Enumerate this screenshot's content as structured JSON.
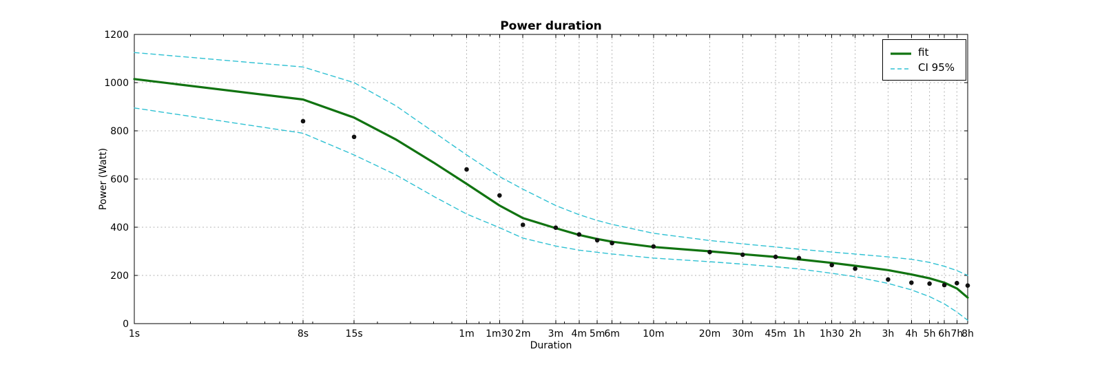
{
  "chart_data": {
    "type": "line",
    "title": "Power duration",
    "xlabel": "Duration",
    "ylabel": "Power (Watt)",
    "x_scale": "log",
    "ylim": [
      0,
      1200
    ],
    "yticks": [
      0,
      200,
      400,
      600,
      800,
      1000,
      1200
    ],
    "grid": true,
    "legend_position": "upper right",
    "colors": {
      "fit": "#117311",
      "ci": "#2fc1d3",
      "points": "#111111",
      "grid": "#b3b3b3",
      "frame": "#000000"
    },
    "x_ticks": [
      {
        "label": "1s",
        "seconds": 1
      },
      {
        "label": "8s",
        "seconds": 8
      },
      {
        "label": "15s",
        "seconds": 15
      },
      {
        "label": "1m",
        "seconds": 60
      },
      {
        "label": "1m30",
        "seconds": 90
      },
      {
        "label": "2m",
        "seconds": 120
      },
      {
        "label": "3m",
        "seconds": 180
      },
      {
        "label": "4m",
        "seconds": 240
      },
      {
        "label": "5m",
        "seconds": 300
      },
      {
        "label": "6m",
        "seconds": 360
      },
      {
        "label": "10m",
        "seconds": 600
      },
      {
        "label": "20m",
        "seconds": 1200
      },
      {
        "label": "30m",
        "seconds": 1800
      },
      {
        "label": "45m",
        "seconds": 2700
      },
      {
        "label": "1h",
        "seconds": 3600
      },
      {
        "label": "1h30",
        "seconds": 5400
      },
      {
        "label": "2h",
        "seconds": 7200
      },
      {
        "label": "3h",
        "seconds": 10800
      },
      {
        "label": "4h",
        "seconds": 14400
      },
      {
        "label": "5h",
        "seconds": 18000
      },
      {
        "label": "6h",
        "seconds": 21600
      },
      {
        "label": "7h",
        "seconds": 25200
      },
      {
        "label": "8h",
        "seconds": 28800
      }
    ],
    "series": [
      {
        "name": "fit",
        "type": "line",
        "color_key": "fit",
        "width": 3.2,
        "dash": "",
        "x_seconds": [
          1,
          8,
          15,
          25,
          40,
          60,
          90,
          120,
          180,
          240,
          300,
          360,
          600,
          1200,
          1800,
          2700,
          3600,
          5400,
          7200,
          10800,
          14400,
          18000,
          21600,
          25200,
          28800
        ],
        "values": [
          1015,
          930,
          855,
          765,
          668,
          580,
          490,
          438,
          396,
          368,
          351,
          340,
          318,
          300,
          288,
          277,
          267,
          252,
          240,
          222,
          204,
          188,
          170,
          146,
          108
        ]
      },
      {
        "name": "CI 95% upper",
        "type": "line",
        "color_key": "ci",
        "width": 1.4,
        "dash": "7,5",
        "x_seconds": [
          1,
          8,
          15,
          25,
          40,
          60,
          90,
          120,
          180,
          240,
          300,
          360,
          600,
          1200,
          1800,
          2700,
          3600,
          5400,
          7200,
          10800,
          14400,
          18000,
          21600,
          25200,
          28800
        ],
        "values": [
          1125,
          1065,
          1000,
          905,
          795,
          700,
          610,
          558,
          490,
          452,
          428,
          412,
          375,
          345,
          331,
          318,
          309,
          297,
          289,
          277,
          267,
          254,
          238,
          220,
          200
        ]
      },
      {
        "name": "CI 95% lower",
        "type": "line",
        "color_key": "ci",
        "width": 1.4,
        "dash": "7,5",
        "x_seconds": [
          1,
          8,
          15,
          25,
          40,
          60,
          90,
          120,
          180,
          240,
          300,
          360,
          600,
          1200,
          1800,
          2700,
          3600,
          5400,
          7200,
          10800,
          14400,
          18000,
          21600,
          25200,
          28800
        ],
        "values": [
          895,
          790,
          700,
          618,
          528,
          455,
          398,
          355,
          322,
          305,
          296,
          289,
          272,
          257,
          247,
          236,
          227,
          209,
          195,
          167,
          140,
          112,
          82,
          48,
          14
        ]
      },
      {
        "name": "observations",
        "type": "scatter",
        "color_key": "points",
        "radius": 3.3,
        "x_seconds": [
          8,
          15,
          60,
          90,
          120,
          180,
          240,
          300,
          360,
          600,
          1200,
          1800,
          2700,
          3600,
          5400,
          7200,
          10800,
          14400,
          18000,
          21600,
          25200,
          28800
        ],
        "values": [
          840,
          775,
          640,
          532,
          410,
          398,
          370,
          346,
          334,
          320,
          297,
          286,
          277,
          272,
          243,
          228,
          183,
          170,
          166,
          160,
          168,
          158
        ]
      }
    ],
    "legend": [
      {
        "label": "fit",
        "color_key": "fit",
        "dash": "",
        "width": 3.2
      },
      {
        "label": "CI 95%",
        "color_key": "ci",
        "dash": "6,4",
        "width": 1.4
      }
    ]
  }
}
